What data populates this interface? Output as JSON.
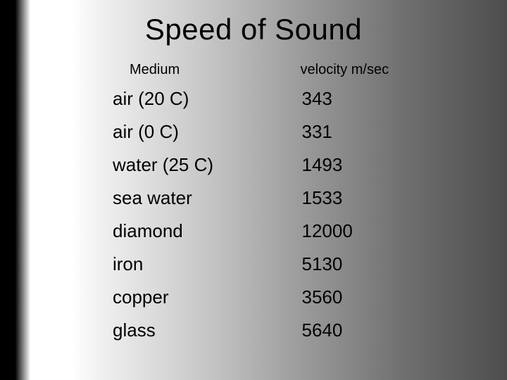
{
  "title": "Speed of Sound",
  "table": {
    "headers": {
      "medium": "Medium",
      "velocity": "velocity m/sec"
    },
    "rows": [
      {
        "medium": "air (20 C)",
        "velocity": "  343"
      },
      {
        "medium": "air (0 C)",
        "velocity": "   331"
      },
      {
        "medium": "water (25 C)",
        "velocity": "1493"
      },
      {
        "medium": "sea water",
        "velocity": "1533"
      },
      {
        "medium": "diamond",
        "velocity": "12000"
      },
      {
        "medium": "iron",
        "velocity": "5130"
      },
      {
        "medium": "copper",
        "velocity": " 3560"
      },
      {
        "medium": "glass",
        "velocity": "5640"
      }
    ]
  },
  "style": {
    "title_fontsize": 42,
    "header_fontsize": 20,
    "cell_fontsize": 26,
    "text_color": "#000000",
    "gradient_stops": [
      "#000000",
      "#ffffff",
      "#c8c8c8",
      "#4d4d4d"
    ]
  }
}
